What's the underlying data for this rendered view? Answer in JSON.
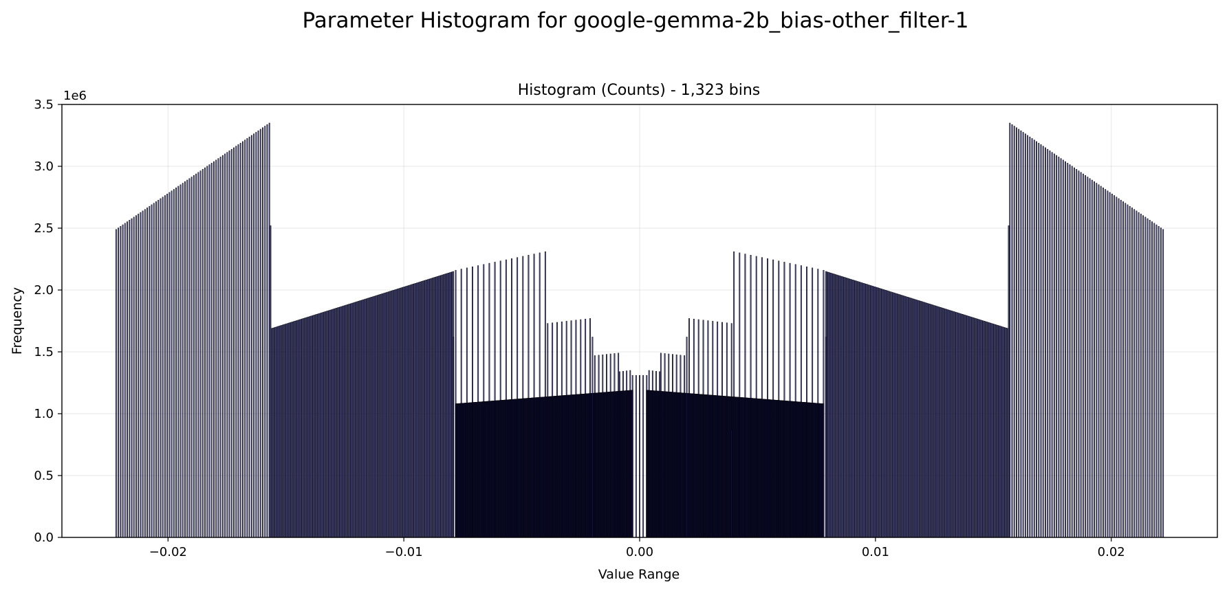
{
  "chart_data": {
    "type": "bar",
    "suptitle": "Parameter Histogram for google-gemma-2b_bias-other_filter-1",
    "title": "Histogram (Counts) - 1,323 bins",
    "xlabel": "Value Range",
    "ylabel": "Frequency",
    "y_offset_label": "1e6",
    "y_scale": 1000000,
    "xlim": [
      -0.0245,
      0.0245
    ],
    "ylim": [
      0,
      3500000
    ],
    "grid": true,
    "bar_fill": "#191970",
    "bar_edge": "#000000",
    "x_ticks": [
      {
        "value": -0.02,
        "label": "−0.02"
      },
      {
        "value": -0.01,
        "label": "−0.01"
      },
      {
        "value": 0.0,
        "label": "0.00"
      },
      {
        "value": 0.01,
        "label": "0.01"
      },
      {
        "value": 0.02,
        "label": "0.02"
      }
    ],
    "y_ticks": [
      {
        "value": 0,
        "label": "0.0"
      },
      {
        "value": 500000,
        "label": "0.5"
      },
      {
        "value": 1000000,
        "label": "1.0"
      },
      {
        "value": 1500000,
        "label": "1.5"
      },
      {
        "value": 2000000,
        "label": "2.0"
      },
      {
        "value": 2500000,
        "label": "2.5"
      },
      {
        "value": 3000000,
        "label": "3.0"
      },
      {
        "value": 3500000,
        "label": "3.5"
      }
    ],
    "bin_count": 1323,
    "segments": [
      {
        "x_start": -0.0222,
        "x_end": -0.0157,
        "count": 70,
        "y_start": 2490000,
        "y_end": 3350000
      },
      {
        "x_start": -0.01565,
        "x_end": -0.01565,
        "count": 1,
        "y_start": 2520000,
        "y_end": 2520000
      },
      {
        "x_start": -0.0156,
        "x_end": -0.0079,
        "count": 150,
        "y_start": 1690000,
        "y_end": 2150000
      },
      {
        "x_start": -0.0078,
        "x_end": -0.004,
        "count": 17,
        "y_start": 2160000,
        "y_end": 2310000
      },
      {
        "x_start": -0.0039,
        "x_end": -0.0021,
        "count": 10,
        "y_start": 1730000,
        "y_end": 1770000
      },
      {
        "x_start": -0.0019,
        "x_end": -0.0009,
        "count": 7,
        "y_start": 1470000,
        "y_end": 1490000
      },
      {
        "x_start": -0.00085,
        "x_end": -0.0004,
        "count": 4,
        "y_start": 1340000,
        "y_end": 1350000
      },
      {
        "x_start": -0.0003,
        "x_end": 0.0003,
        "count": 5,
        "y_start": 1310000,
        "y_end": 1310000
      },
      {
        "x_start": 0.0004,
        "x_end": 0.00085,
        "count": 4,
        "y_start": 1350000,
        "y_end": 1340000
      },
      {
        "x_start": 0.0009,
        "x_end": 0.0019,
        "count": 7,
        "y_start": 1490000,
        "y_end": 1470000
      },
      {
        "x_start": 0.0021,
        "x_end": 0.0039,
        "count": 10,
        "y_start": 1770000,
        "y_end": 1730000
      },
      {
        "x_start": 0.004,
        "x_end": 0.0078,
        "count": 17,
        "y_start": 2310000,
        "y_end": 2160000
      },
      {
        "x_start": 0.0079,
        "x_end": 0.0156,
        "count": 150,
        "y_start": 2150000,
        "y_end": 1690000
      },
      {
        "x_start": 0.01565,
        "x_end": 0.01565,
        "count": 1,
        "y_start": 2520000,
        "y_end": 2520000
      },
      {
        "x_start": 0.0157,
        "x_end": 0.0222,
        "count": 70,
        "y_start": 3350000,
        "y_end": 2490000
      },
      {
        "x_start": -0.0078,
        "x_end": -0.0003,
        "count": 380,
        "y_start": 1080000,
        "y_end": 1190000
      },
      {
        "x_start": 0.0003,
        "x_end": 0.0078,
        "count": 380,
        "y_start": 1190000,
        "y_end": 1080000
      },
      {
        "x_start": -0.0079,
        "x_end": -0.0079,
        "count": 1,
        "y_start": 1620000,
        "y_end": 1620000
      },
      {
        "x_start": 0.0079,
        "x_end": 0.0079,
        "count": 1,
        "y_start": 1620000,
        "y_end": 1620000
      },
      {
        "x_start": -0.002,
        "x_end": -0.002,
        "count": 1,
        "y_start": 1620000,
        "y_end": 1620000
      },
      {
        "x_start": 0.002,
        "x_end": 0.002,
        "count": 1,
        "y_start": 1620000,
        "y_end": 1620000
      },
      {
        "x_start": 0.0039,
        "x_end": 0.0039,
        "count": 1,
        "y_start": 870000,
        "y_end": 870000
      }
    ]
  }
}
